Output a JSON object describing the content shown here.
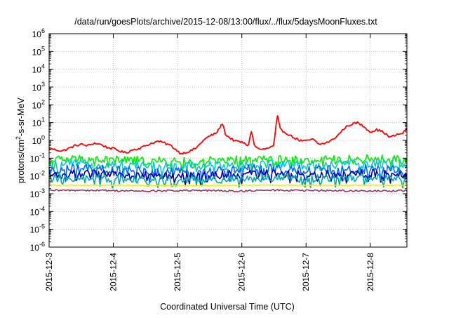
{
  "chart_data": {
    "type": "line",
    "title": "/data/run/goesPlots/archive/2015-12-08/13:00/flux/../flux/5daysMoonFluxes.txt",
    "xlabel": "Coordinated Universal Time (UTC)",
    "ylabel": "protons/cm²-s-sr-MeV",
    "ylabel_parts": {
      "pre": "protons/cm",
      "sup": "2",
      "post": "-s-sr-MeV"
    },
    "yscale": "log",
    "ylim_exponents": [
      -6,
      6
    ],
    "y_tick_exponents": [
      -6,
      -5,
      -4,
      -3,
      -2,
      -1,
      0,
      1,
      2,
      3,
      4,
      5,
      6
    ],
    "y_tick_base": "10",
    "xlim_days": [
      0,
      5.57
    ],
    "x_ticks": [
      {
        "label": "2015-12-3",
        "day": 0
      },
      {
        "label": "2015-12-4",
        "day": 1
      },
      {
        "label": "2015-12-5",
        "day": 2
      },
      {
        "label": "2015-12-6",
        "day": 3
      },
      {
        "label": "2015-12-7",
        "day": 4
      },
      {
        "label": "2015-12-8",
        "day": 5
      }
    ],
    "grid": true,
    "series": [
      {
        "color": "#ff0000",
        "x": [
          0,
          0.1,
          0.2,
          0.3,
          0.4,
          0.5,
          0.6,
          0.7,
          0.8,
          0.9,
          1.0,
          1.1,
          1.2,
          1.3,
          1.4,
          1.5,
          1.6,
          1.7,
          1.8,
          1.9,
          2.0,
          2.05,
          2.1,
          2.2,
          2.3,
          2.4,
          2.5,
          2.6,
          2.7,
          2.75,
          2.8,
          2.9,
          3.0,
          3.1,
          3.15,
          3.2,
          3.3,
          3.4,
          3.5,
          3.55,
          3.6,
          3.7,
          3.8,
          3.9,
          4.0,
          4.1,
          4.2,
          4.3,
          4.4,
          4.5,
          4.6,
          4.7,
          4.8,
          4.9,
          5.0,
          5.1,
          5.2,
          5.3,
          5.4,
          5.5,
          5.57
        ],
        "y": [
          0.35,
          0.3,
          0.25,
          0.35,
          0.5,
          0.6,
          0.5,
          0.7,
          0.6,
          0.4,
          0.35,
          0.25,
          0.2,
          0.3,
          0.35,
          0.5,
          0.7,
          0.9,
          0.7,
          0.5,
          0.25,
          0.18,
          0.2,
          0.25,
          0.4,
          1.0,
          1.8,
          2.5,
          9.0,
          2.0,
          1.5,
          0.9,
          0.8,
          0.5,
          3.5,
          0.45,
          0.3,
          0.35,
          0.5,
          28.0,
          4.0,
          2.5,
          1.5,
          1.0,
          0.9,
          1.2,
          0.6,
          0.7,
          1.0,
          2.0,
          5.0,
          8.0,
          10.0,
          6.0,
          3.0,
          4.0,
          3.0,
          1.5,
          2.0,
          2.5,
          4.5
        ]
      },
      {
        "color": "#00ee00",
        "x": [
          0,
          0.5,
          1.0,
          1.5,
          2.0,
          2.5,
          3.0,
          3.5,
          4.0,
          4.5,
          5.0,
          5.57
        ],
        "y": [
          0.08,
          0.09,
          0.08,
          0.07,
          0.06,
          0.07,
          0.08,
          0.09,
          0.07,
          0.08,
          0.09,
          0.08
        ]
      },
      {
        "color": "#00cccc",
        "x": [
          0,
          0.5,
          1.0,
          1.5,
          2.0,
          2.5,
          3.0,
          3.5,
          4.0,
          4.5,
          5.0,
          5.57
        ],
        "y": [
          0.04,
          0.05,
          0.045,
          0.04,
          0.035,
          0.04,
          0.045,
          0.05,
          0.04,
          0.045,
          0.05,
          0.045
        ]
      },
      {
        "color": "#0066ff",
        "x": [
          0,
          0.5,
          1.0,
          1.5,
          2.0,
          2.5,
          3.0,
          3.5,
          4.0,
          4.5,
          5.0,
          5.57
        ],
        "y": [
          0.02,
          0.025,
          0.02,
          0.018,
          0.015,
          0.018,
          0.022,
          0.025,
          0.02,
          0.022,
          0.025,
          0.02
        ]
      },
      {
        "color": "#0000aa",
        "x": [
          0,
          0.5,
          1.0,
          1.5,
          2.0,
          2.5,
          3.0,
          3.5,
          4.0,
          4.5,
          5.0,
          5.57
        ],
        "y": [
          0.012,
          0.014,
          0.012,
          0.011,
          0.01,
          0.011,
          0.013,
          0.014,
          0.012,
          0.013,
          0.014,
          0.012
        ]
      },
      {
        "color": "#00aaaa",
        "x": [
          0,
          0.5,
          1.0,
          1.5,
          2.0,
          2.5,
          3.0,
          3.5,
          4.0,
          4.5,
          5.0,
          5.57
        ],
        "y": [
          0.007,
          0.008,
          0.007,
          0.0065,
          0.006,
          0.0065,
          0.007,
          0.008,
          0.007,
          0.0075,
          0.008,
          0.007
        ]
      },
      {
        "color": "#eeee00",
        "x": [
          0,
          1.0,
          2.0,
          3.0,
          4.0,
          5.0,
          5.57
        ],
        "y": [
          0.003,
          0.003,
          0.0028,
          0.003,
          0.003,
          0.003,
          0.003
        ]
      },
      {
        "color": "#993366",
        "x": [
          0,
          0.5,
          1.0,
          1.5,
          2.0,
          2.5,
          3.0,
          3.5,
          4.0,
          4.5,
          5.0,
          5.57
        ],
        "y": [
          0.0015,
          0.0016,
          0.0015,
          0.0014,
          0.0015,
          0.0015,
          0.0014,
          0.0016,
          0.0015,
          0.0015,
          0.0014,
          0.0015
        ]
      }
    ]
  }
}
